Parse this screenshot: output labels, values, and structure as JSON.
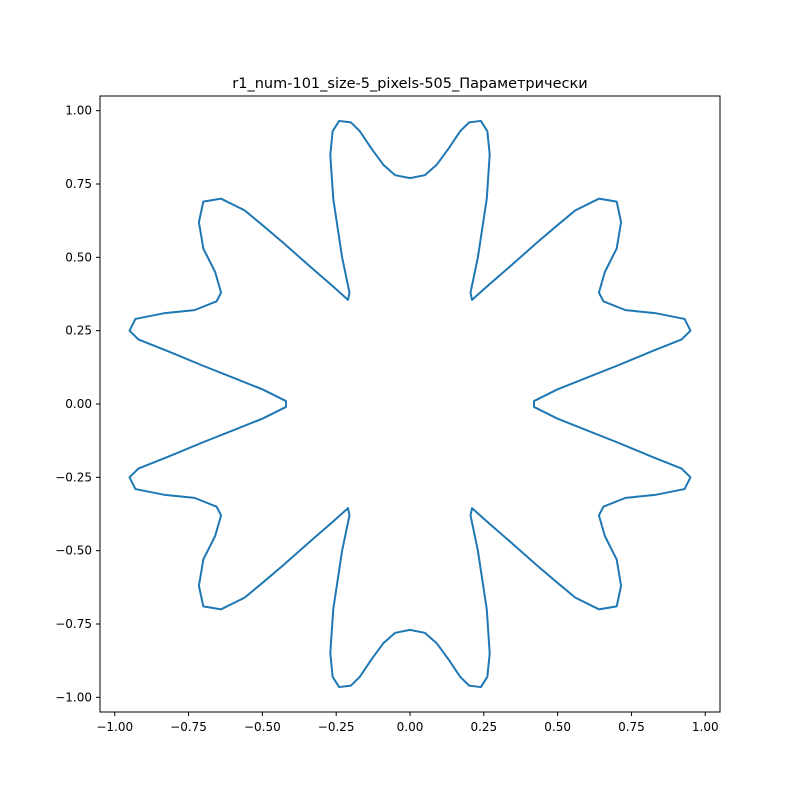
{
  "chart_data": {
    "type": "line",
    "title": "r1_num-101_size-5_pixels-505_Параметрически",
    "xlabel": "",
    "ylabel": "",
    "xlim": [
      -1.05,
      1.05
    ],
    "ylim": [
      -1.05,
      1.05
    ],
    "grid": false,
    "legend": "none",
    "line_color": "#1f77b4",
    "xticks": [
      {
        "value": -1.0,
        "label": "−1.00"
      },
      {
        "value": -0.75,
        "label": "−0.75"
      },
      {
        "value": -0.5,
        "label": "−0.50"
      },
      {
        "value": -0.25,
        "label": "−0.25"
      },
      {
        "value": 0.0,
        "label": "0.00"
      },
      {
        "value": 0.25,
        "label": "0.25"
      },
      {
        "value": 0.5,
        "label": "0.50"
      },
      {
        "value": 0.75,
        "label": "0.75"
      },
      {
        "value": 1.0,
        "label": "1.00"
      }
    ],
    "yticks": [
      {
        "value": 1.0,
        "label": "1.00"
      },
      {
        "value": 0.75,
        "label": "0.75"
      },
      {
        "value": 0.5,
        "label": "0.50"
      },
      {
        "value": 0.25,
        "label": "0.25"
      },
      {
        "value": 0.0,
        "label": "0.00"
      },
      {
        "value": -0.25,
        "label": "−0.25"
      },
      {
        "value": -0.5,
        "label": "−0.50"
      },
      {
        "value": -0.75,
        "label": "−0.75"
      },
      {
        "value": -1.0,
        "label": "−1.00"
      }
    ],
    "series": [
      {
        "x": [
          0.0,
          0.05,
          0.09,
          0.13,
          0.17,
          0.2,
          0.24,
          0.262,
          0.27,
          0.26,
          0.23,
          0.205,
          0.21,
          0.26,
          0.34,
          0.43,
          0.5,
          0.56,
          0.64,
          0.7,
          0.715,
          0.7,
          0.66,
          0.64,
          0.655,
          0.73,
          0.83,
          0.93,
          0.95,
          0.92,
          0.82,
          0.7,
          0.6,
          0.5,
          0.42,
          0.42,
          0.5,
          0.6,
          0.7,
          0.82,
          0.92,
          0.95,
          0.93,
          0.83,
          0.73,
          0.655,
          0.64,
          0.66,
          0.7,
          0.715,
          0.7,
          0.64,
          0.56,
          0.5,
          0.43,
          0.34,
          0.26,
          0.21,
          0.205,
          0.23,
          0.26,
          0.27,
          0.262,
          0.24,
          0.2,
          0.17,
          0.13,
          0.09,
          0.05,
          0.0,
          -0.05,
          -0.09,
          -0.13,
          -0.17,
          -0.2,
          -0.24,
          -0.262,
          -0.27,
          -0.26,
          -0.23,
          -0.205,
          -0.21,
          -0.26,
          -0.34,
          -0.43,
          -0.5,
          -0.56,
          -0.64,
          -0.7,
          -0.715,
          -0.7,
          -0.66,
          -0.64,
          -0.655,
          -0.73,
          -0.83,
          -0.93,
          -0.95,
          -0.92,
          -0.82,
          -0.7,
          -0.6,
          -0.5,
          -0.42,
          -0.42,
          -0.5,
          -0.6,
          -0.7,
          -0.82,
          -0.92,
          -0.95,
          -0.93,
          -0.83,
          -0.73,
          -0.655,
          -0.64,
          -0.66,
          -0.7,
          -0.715,
          -0.7,
          -0.64,
          -0.56,
          -0.5,
          -0.43,
          -0.34,
          -0.26,
          -0.21,
          -0.205,
          -0.23,
          -0.26,
          -0.27,
          -0.262,
          -0.24,
          -0.2,
          -0.17,
          -0.13,
          -0.09,
          -0.05,
          0.0
        ],
        "y": [
          0.77,
          0.78,
          0.815,
          0.87,
          0.93,
          0.96,
          0.965,
          0.93,
          0.85,
          0.7,
          0.5,
          0.38,
          0.355,
          0.4,
          0.47,
          0.55,
          0.61,
          0.66,
          0.7,
          0.69,
          0.62,
          0.53,
          0.45,
          0.38,
          0.35,
          0.32,
          0.31,
          0.29,
          0.25,
          0.22,
          0.18,
          0.13,
          0.09,
          0.05,
          0.01,
          -0.01,
          -0.05,
          -0.09,
          -0.13,
          -0.18,
          -0.22,
          -0.25,
          -0.29,
          -0.31,
          -0.32,
          -0.35,
          -0.38,
          -0.45,
          -0.53,
          -0.62,
          -0.69,
          -0.7,
          -0.66,
          -0.61,
          -0.55,
          -0.47,
          -0.4,
          -0.355,
          -0.38,
          -0.5,
          -0.7,
          -0.85,
          -0.93,
          -0.965,
          -0.96,
          -0.93,
          -0.87,
          -0.815,
          -0.78,
          -0.77,
          -0.78,
          -0.815,
          -0.87,
          -0.93,
          -0.96,
          -0.965,
          -0.93,
          -0.85,
          -0.7,
          -0.5,
          -0.38,
          -0.355,
          -0.4,
          -0.47,
          -0.55,
          -0.61,
          -0.66,
          -0.7,
          -0.69,
          -0.62,
          -0.53,
          -0.45,
          -0.38,
          -0.35,
          -0.32,
          -0.31,
          -0.29,
          -0.25,
          -0.22,
          -0.18,
          -0.13,
          -0.09,
          -0.05,
          -0.01,
          0.01,
          0.05,
          0.09,
          0.13,
          0.18,
          0.22,
          0.25,
          0.29,
          0.31,
          0.32,
          0.35,
          0.38,
          0.45,
          0.53,
          0.62,
          0.69,
          0.7,
          0.66,
          0.61,
          0.55,
          0.47,
          0.4,
          0.355,
          0.38,
          0.5,
          0.7,
          0.85,
          0.93,
          0.965,
          0.96,
          0.93,
          0.87,
          0.815,
          0.78,
          0.77
        ]
      }
    ]
  }
}
